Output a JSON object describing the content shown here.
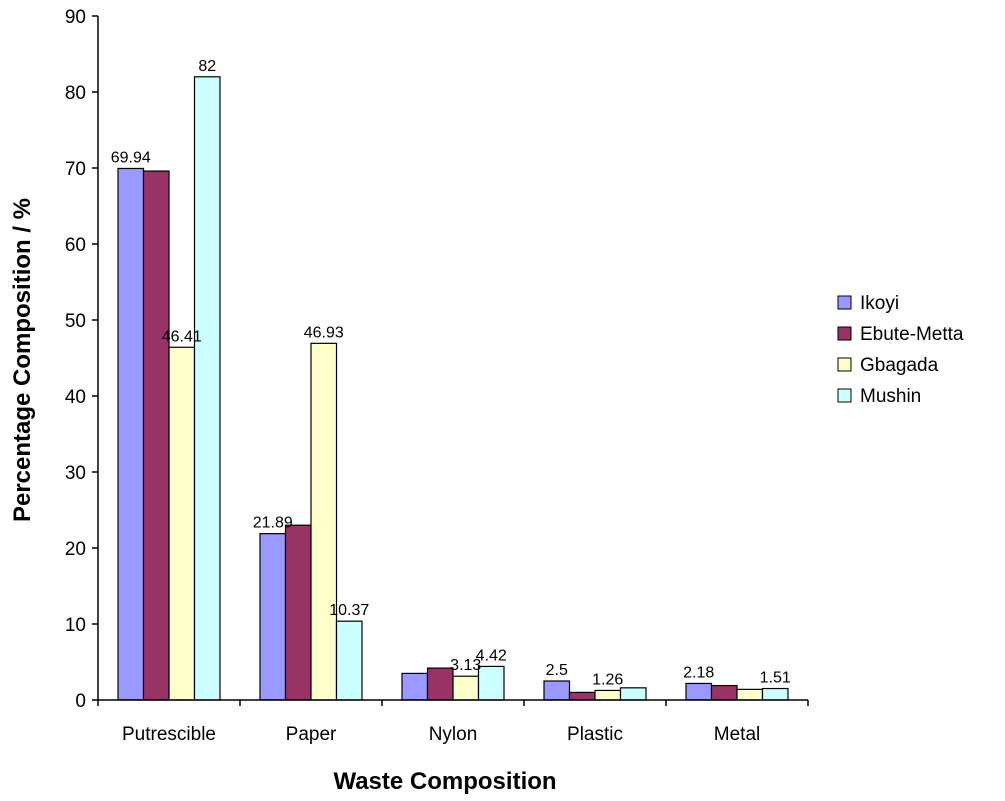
{
  "chart_data": {
    "type": "bar",
    "title": "",
    "xlabel": "Waste Composition",
    "ylabel": "Percentage Composition / %",
    "ylim": [
      0,
      90
    ],
    "yticks": [
      0,
      10,
      20,
      30,
      40,
      50,
      60,
      70,
      80,
      90
    ],
    "grid": false,
    "legend_position": "right",
    "categories": [
      "Putrescible",
      "Paper",
      "Nylon",
      "Plastic",
      "Metal"
    ],
    "series": [
      {
        "name": "Ikoyi",
        "color": "#9999ff",
        "values": [
          69.94,
          21.89,
          3.5,
          2.5,
          2.18
        ]
      },
      {
        "name": "Ebute-Metta",
        "color": "#993366",
        "values": [
          69.6,
          23.0,
          4.2,
          1.0,
          1.9
        ]
      },
      {
        "name": "Gbagada",
        "color": "#ffffcc",
        "values": [
          46.41,
          46.93,
          3.13,
          1.26,
          1.4
        ]
      },
      {
        "name": "Mushin",
        "color": "#ccffff",
        "values": [
          82,
          10.37,
          4.42,
          1.6,
          1.51
        ]
      }
    ],
    "data_labels": [
      {
        "category": 0,
        "series": 0,
        "text": "69.94"
      },
      {
        "category": 0,
        "series": 2,
        "text": "46.41"
      },
      {
        "category": 0,
        "series": 3,
        "text": "82"
      },
      {
        "category": 1,
        "series": 0,
        "text": "21.89"
      },
      {
        "category": 1,
        "series": 2,
        "text": "46.93"
      },
      {
        "category": 1,
        "series": 3,
        "text": "10.37"
      },
      {
        "category": 2,
        "series": 2,
        "text": "3.13"
      },
      {
        "category": 2,
        "series": 3,
        "text": "4.42"
      },
      {
        "category": 3,
        "series": 0,
        "text": "2.5"
      },
      {
        "category": 3,
        "series": 2,
        "text": "1.26"
      },
      {
        "category": 4,
        "series": 0,
        "text": "2.18"
      },
      {
        "category": 4,
        "series": 3,
        "text": "1.51"
      }
    ]
  }
}
